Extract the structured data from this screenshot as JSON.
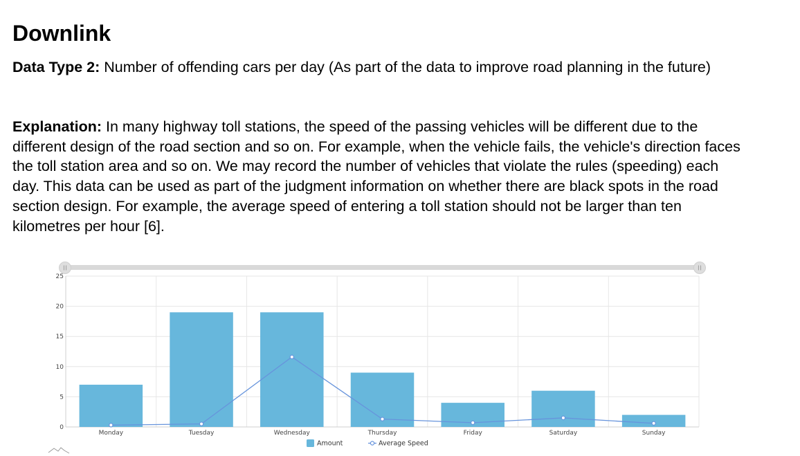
{
  "slide": {
    "title": "Downlink",
    "p1_label": "Data Type 2:",
    "p1_text": " Number of offending cars per day (As part of the data to improve road planning in the future)",
    "p2_label": "Explanation:",
    "p2_text": " In many highway toll stations, the speed of the passing vehicles will be different due to the different design of the road section and so on. For example, when the vehicle fails, the vehicle's direction faces the toll station area and so on. We may record the number of vehicles that violate the rules (speeding) each day. This data can be used as part of the judgment information on whether there are black spots in the road section design. For example, the average speed of entering a toll station should not be larger than ten kilometres per hour [6]."
  },
  "chart_data": {
    "type": "bar",
    "categories": [
      "Monday",
      "Tuesday",
      "Wednesday",
      "Thursday",
      "Friday",
      "Saturday",
      "Sunday"
    ],
    "series": [
      {
        "name": "Amount",
        "type": "bar",
        "color": "#67b7dc",
        "values": [
          7,
          19,
          19,
          9,
          4,
          6,
          2
        ]
      },
      {
        "name": "Average Speed",
        "type": "line",
        "color": "#6794dc",
        "values": [
          0.3,
          0.5,
          11.6,
          1.3,
          0.7,
          1.5,
          0.6
        ]
      }
    ],
    "ylim": [
      0,
      25
    ],
    "yticks": [
      0,
      5,
      10,
      15,
      20,
      25
    ],
    "grid": true,
    "legend": "bottom-center",
    "scrollbar": true
  }
}
